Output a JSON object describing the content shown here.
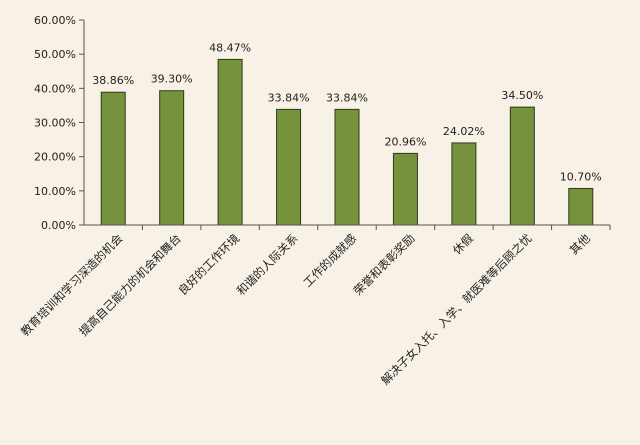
{
  "chart_data": {
    "type": "bar",
    "categories": [
      "教育培训和学习深造的机会",
      "提高自己能力的机会和舞台",
      "良好的工作环境",
      "和谐的人际关系",
      "工作的成就感",
      "荣誉和表彰奖励",
      "休假",
      "解决子女入托、入学、就医难等后顾之忧",
      "其他"
    ],
    "values": [
      38.86,
      39.3,
      48.47,
      33.84,
      33.84,
      20.96,
      24.02,
      34.5,
      10.7
    ],
    "data_labels": [
      "38.86%",
      "39.30%",
      "48.47%",
      "33.84%",
      "33.84%",
      "20.96%",
      "24.02%",
      "34.50%",
      "10.70%"
    ],
    "y_ticks": [
      "0.00%",
      "10.00%",
      "20.00%",
      "30.00%",
      "40.00%",
      "50.00%",
      "60.00%"
    ],
    "ylim": [
      0,
      60
    ],
    "title": "",
    "xlabel": "",
    "ylabel": "",
    "grid": false,
    "bar_color": "#76923c",
    "bar_edge_color": "#2f3a1a"
  }
}
